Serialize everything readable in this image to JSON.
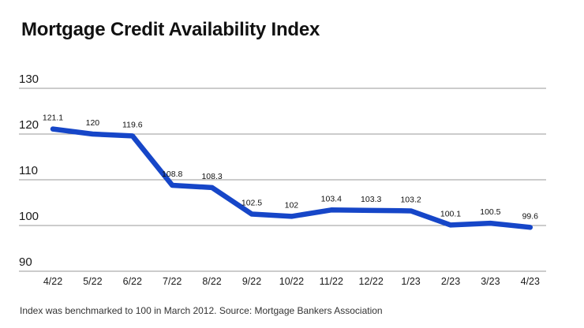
{
  "header": {
    "title": "Mortgage Credit Availability Index"
  },
  "footer": {
    "note": "Index was benchmarked to 100 in March 2012. Source: Mortgage Bankers Association"
  },
  "colors": {
    "line": "#1646c8",
    "grid": "#999999",
    "tick_text": "#1a1a1a",
    "label_text": "#111111"
  },
  "chart_data": {
    "type": "line",
    "title": "Mortgage Credit Availability Index",
    "categories": [
      "4/22",
      "5/22",
      "6/22",
      "7/22",
      "8/22",
      "9/22",
      "10/22",
      "11/22",
      "12/22",
      "1/23",
      "2/23",
      "3/23",
      "4/23"
    ],
    "values": [
      121.1,
      120,
      119.6,
      108.8,
      108.3,
      102.5,
      102,
      103.4,
      103.3,
      103.2,
      100.1,
      100.5,
      99.6
    ],
    "xlabel": "",
    "ylabel": "",
    "ylim": [
      90,
      130
    ],
    "yticks": [
      90,
      100,
      110,
      120,
      130
    ],
    "grid": true,
    "legend": false,
    "data_labels": true,
    "note": "Index was benchmarked to 100 in March 2012. Source: Mortgage Bankers Association"
  }
}
